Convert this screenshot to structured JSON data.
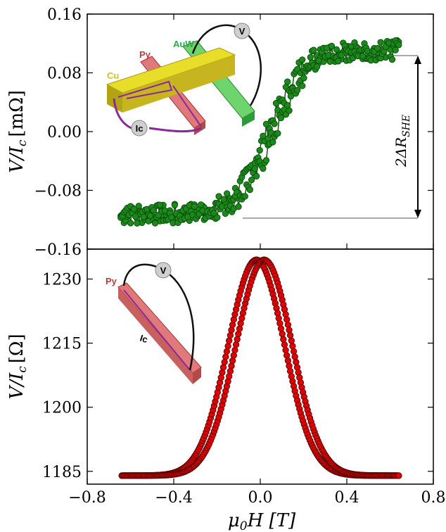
{
  "chart_data": [
    {
      "type": "scatter",
      "panel": "top",
      "xlim": [
        -0.8,
        0.8
      ],
      "ylim": [
        -0.16,
        0.16
      ],
      "yticks": [
        "0.16",
        "0.08",
        "0.00",
        "−0.08",
        "−0.16"
      ],
      "ytick_values": [
        0.16,
        0.08,
        0.0,
        -0.08,
        -0.16
      ],
      "ylabel": "V/I_c [mΩ]",
      "grid": false,
      "series": [
        {
          "color": "#1b8a1b",
          "points": [
            [
              -0.65,
              -0.115
            ],
            [
              -0.6,
              -0.114
            ],
            [
              -0.55,
              -0.113
            ],
            [
              -0.5,
              -0.113
            ],
            [
              -0.45,
              -0.112
            ],
            [
              -0.4,
              -0.112
            ],
            [
              -0.35,
              -0.111
            ],
            [
              -0.3,
              -0.11
            ],
            [
              -0.25,
              -0.108
            ],
            [
              -0.2,
              -0.104
            ],
            [
              -0.15,
              -0.097
            ],
            [
              -0.1,
              -0.085
            ],
            [
              -0.05,
              -0.065
            ],
            [
              0.0,
              -0.035
            ],
            [
              0.05,
              0.0
            ],
            [
              0.1,
              0.03
            ],
            [
              0.15,
              0.06
            ],
            [
              0.2,
              0.085
            ],
            [
              0.25,
              0.1
            ],
            [
              0.3,
              0.106
            ],
            [
              0.35,
              0.108
            ],
            [
              0.4,
              0.109
            ],
            [
              0.45,
              0.11
            ],
            [
              0.5,
              0.11
            ],
            [
              0.55,
              0.111
            ],
            [
              0.6,
              0.111
            ],
            [
              0.64,
              0.112
            ]
          ]
        }
      ],
      "annotations": [
        {
          "text": "2ΔR_SHE",
          "y_from": -0.113,
          "y_to": 0.11
        }
      ],
      "inset": {
        "labels": [
          {
            "text": "Cu",
            "color": "#d4c21a"
          },
          {
            "text": "Py",
            "color": "#c0393b"
          },
          {
            "text": "AuW",
            "color": "#2fa84a"
          },
          {
            "text": "V",
            "color": "#000000"
          },
          {
            "text": "Ic",
            "color": "#000000"
          }
        ]
      }
    },
    {
      "type": "scatter",
      "panel": "bottom",
      "xlim": [
        -0.8,
        0.8
      ],
      "ylim": [
        1182,
        1237
      ],
      "xticks": [
        "−0.8",
        "−0.4",
        "0.0",
        "0.4",
        "0.8"
      ],
      "xtick_values": [
        -0.8,
        -0.4,
        0.0,
        0.4,
        0.8
      ],
      "yticks": [
        "1230",
        "1215",
        "1200",
        "1185"
      ],
      "ytick_values": [
        1230,
        1215,
        1200,
        1185
      ],
      "xlabel": "μ_0H [T]",
      "ylabel": "V/I_c [Ω]",
      "grid": false,
      "series": [
        {
          "color": "#e00000",
          "model": {
            "baseline": 1184,
            "peak": 1234.5,
            "center": 0.0,
            "sigma": 0.13,
            "hysteresis_shift": 0.018,
            "x_range": [
              -0.64,
              0.64
            ]
          }
        }
      ],
      "inset": {
        "labels": [
          {
            "text": "Py",
            "color": "#c0393b"
          },
          {
            "text": "V",
            "color": "#000000"
          },
          {
            "text": "Ic",
            "color": "#000000"
          }
        ]
      }
    }
  ],
  "top_yticks": [
    "0.16",
    "0.08",
    "0.00",
    "−0.08",
    "−0.16"
  ],
  "bottom_yticks": [
    "1230",
    "1215",
    "1200",
    "1185"
  ],
  "xticks": [
    "−0.8",
    "−0.4",
    "0.0",
    "0.4",
    "0.8"
  ],
  "labels": {
    "top_ylabel_main": "V/I",
    "top_ylabel_sub": "c",
    "top_ylabel_unit": "[mΩ]",
    "bottom_ylabel_main": "V/I",
    "bottom_ylabel_sub": "c",
    "bottom_ylabel_unit": "[Ω]",
    "xlabel_main": "μ",
    "xlabel_sub": "0",
    "xlabel_rest": "H [T]",
    "annot_main": "2ΔR",
    "annot_sub": "SHE"
  },
  "inset_top": {
    "cu": "Cu",
    "py": "Py",
    "auw": "AuW",
    "v": "V",
    "ic": "Ic"
  },
  "inset_bottom": {
    "py": "Py",
    "v": "V",
    "ic": "Ic"
  }
}
